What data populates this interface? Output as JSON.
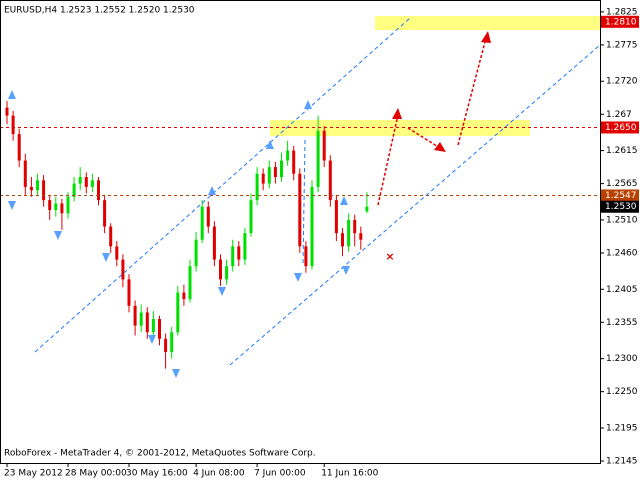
{
  "chart_data": {
    "type": "candlestick",
    "title": "EURUSD,H4  1.2523 1.2552 1.2520 1.2530",
    "footer": "RoboForex - MetaTrader 4, © 2001-2012, MetaQuotes Software Corp.",
    "categories": [
      "23 May 2012",
      null,
      null,
      null,
      null,
      null,
      null,
      null,
      null,
      null,
      "28 May 00:00",
      null,
      null,
      null,
      null,
      null,
      null,
      null,
      null,
      null,
      "30 May 16:00",
      null,
      null,
      null,
      null,
      null,
      null,
      null,
      null,
      null,
      null,
      "4 Jun 08:00",
      null,
      null,
      null,
      null,
      null,
      null,
      null,
      null,
      null,
      "7 Jun 00:00",
      null,
      null,
      null,
      null,
      null,
      null,
      null,
      null,
      null,
      null,
      "11 Jun 16:00",
      null,
      null,
      null,
      null,
      null,
      null,
      null
    ],
    "open": [
      1.268,
      1.2668,
      1.264,
      1.26,
      1.256,
      1.2555,
      1.257,
      1.254,
      1.2525,
      1.2535,
      1.252,
      1.2545,
      1.2565,
      1.2575,
      1.256,
      1.257,
      1.254,
      1.25,
      1.247,
      1.245,
      1.242,
      1.238,
      1.235,
      1.237,
      1.234,
      1.236,
      1.233,
      1.231,
      1.234,
      1.24,
      1.239,
      1.244,
      1.248,
      1.253,
      1.25,
      1.245,
      1.242,
      1.244,
      1.247,
      1.245,
      1.249,
      1.254,
      1.258,
      1.2565,
      1.259,
      1.2575,
      1.26,
      1.2615,
      1.258,
      1.247,
      1.244,
      1.256,
      1.2645,
      1.26,
      1.254,
      1.249,
      1.247,
      1.251,
      1.249,
      1.2523
    ],
    "high": [
      1.269,
      1.2675,
      1.2648,
      1.261,
      1.2575,
      1.258,
      1.2578,
      1.2548,
      1.2545,
      1.2542,
      1.2552,
      1.2575,
      1.259,
      1.2582,
      1.258,
      1.2575,
      1.2548,
      1.2505,
      1.2478,
      1.2458,
      1.2428,
      1.2388,
      1.2382,
      1.2378,
      1.2372,
      1.2365,
      1.2338,
      1.2348,
      1.241,
      1.2412,
      1.245,
      1.2492,
      1.254,
      1.2538,
      1.2508,
      1.2458,
      1.245,
      1.248,
      1.2478,
      1.2498,
      1.255,
      1.259,
      1.2588,
      1.26,
      1.2598,
      1.2612,
      1.263,
      1.2622,
      1.2588,
      1.2478,
      1.257,
      1.2668,
      1.2652,
      1.2608,
      1.2548,
      1.2498,
      1.252,
      1.2518,
      1.25,
      1.2552
    ],
    "low": [
      1.2655,
      1.263,
      1.259,
      1.2548,
      1.2545,
      1.2548,
      1.253,
      1.251,
      1.2515,
      1.2495,
      1.2512,
      1.2538,
      1.2555,
      1.255,
      1.2552,
      1.2532,
      1.249,
      1.246,
      1.244,
      1.2408,
      1.237,
      1.2335,
      1.234,
      1.233,
      1.2332,
      1.232,
      1.2285,
      1.23,
      1.2335,
      1.238,
      1.2385,
      1.2432,
      1.2475,
      1.249,
      1.244,
      1.241,
      1.2412,
      1.2432,
      1.244,
      1.2442,
      1.2485,
      1.2532,
      1.2555,
      1.2558,
      1.2565,
      1.2568,
      1.2592,
      1.257,
      1.246,
      1.243,
      1.2435,
      1.2552,
      1.259,
      1.253,
      1.2478,
      1.2455,
      1.2462,
      1.247,
      1.2465,
      1.252
    ],
    "close": [
      1.2668,
      1.264,
      1.26,
      1.256,
      1.2555,
      1.257,
      1.254,
      1.2525,
      1.2535,
      1.252,
      1.2545,
      1.2565,
      1.2575,
      1.256,
      1.257,
      1.254,
      1.25,
      1.247,
      1.245,
      1.242,
      1.238,
      1.235,
      1.237,
      1.234,
      1.236,
      1.233,
      1.231,
      1.234,
      1.24,
      1.239,
      1.244,
      1.248,
      1.253,
      1.25,
      1.245,
      1.242,
      1.244,
      1.247,
      1.245,
      1.249,
      1.254,
      1.258,
      1.2565,
      1.259,
      1.2575,
      1.26,
      1.2615,
      1.258,
      1.247,
      1.244,
      1.256,
      1.2645,
      1.26,
      1.254,
      1.249,
      1.247,
      1.251,
      1.249,
      1.248,
      1.253
    ],
    "up_color": "#00e000",
    "down_color": "#e00000",
    "ylim": [
      1.2142,
      1.2843
    ],
    "yticks": [
      1.2825,
      1.2775,
      {
        "value": 1.272,
        "label": "1.2720"
      },
      1.267,
      {
        "value": 1.2615,
        "label": "1.2615"
      },
      1.2565,
      {
        "value": 1.251,
        "label": "1.2510"
      },
      {
        "value": 1.246,
        "label": "1.2460"
      },
      1.2405,
      1.2355,
      {
        "value": 1.23,
        "label": "1.2300"
      },
      {
        "value": 1.225,
        "label": "1.2250"
      },
      1.2195,
      1.2145
    ],
    "price_labels": [
      {
        "value": 1.281,
        "label": "1.2810",
        "color": "#e00000",
        "dashed": false
      },
      {
        "value": 1.265,
        "label": "1.2650",
        "color": "#e00000",
        "dashed": true
      },
      {
        "value": 1.2547,
        "label": "1.2547",
        "color": "#b84000",
        "dashed": true
      },
      {
        "value": 1.253,
        "label": "1.2530",
        "color": "#000000",
        "dashed": false
      }
    ]
  }
}
